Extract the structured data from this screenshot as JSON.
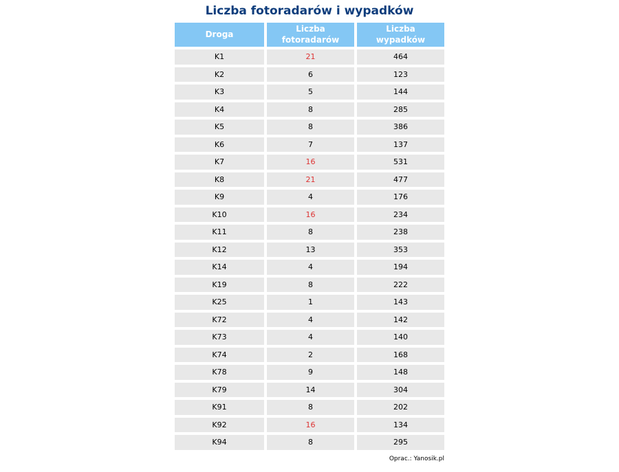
{
  "title": "Liczba fotoradarów i wypadków",
  "footer": "Oprac.: Yanosik.pl",
  "colors": {
    "title_text": "#0e3d7c",
    "header_bg": "#84c7f4",
    "header_text": "#ffffff",
    "row_bg": "#e8e8e8",
    "cell_text": "#000000",
    "highlight_red": "#dd3333",
    "page_bg": "#ffffff"
  },
  "chart_data": {
    "type": "table",
    "title": "Liczba fotoradarów i wypadków",
    "columns": [
      "Droga",
      "Liczba\nfotoradarów",
      "Liczba\nwypadków"
    ],
    "column_keys": [
      "road",
      "cameras",
      "accidents"
    ],
    "highlight_note": "camera counts shown in red for K1, K7, K8, K10, K92",
    "rows": [
      {
        "road": "K1",
        "cameras": "21",
        "accidents": "464",
        "highlight": true
      },
      {
        "road": "K2",
        "cameras": "6",
        "accidents": "123",
        "highlight": false
      },
      {
        "road": "K3",
        "cameras": "5",
        "accidents": "144",
        "highlight": false
      },
      {
        "road": "K4",
        "cameras": "8",
        "accidents": "285",
        "highlight": false
      },
      {
        "road": "K5",
        "cameras": "8",
        "accidents": "386",
        "highlight": false
      },
      {
        "road": "K6",
        "cameras": "7",
        "accidents": "137",
        "highlight": false
      },
      {
        "road": "K7",
        "cameras": "16",
        "accidents": "531",
        "highlight": true
      },
      {
        "road": "K8",
        "cameras": "21",
        "accidents": "477",
        "highlight": true
      },
      {
        "road": "K9",
        "cameras": "4",
        "accidents": "176",
        "highlight": false
      },
      {
        "road": "K10",
        "cameras": "16",
        "accidents": "234",
        "highlight": true
      },
      {
        "road": "K11",
        "cameras": "8",
        "accidents": "238",
        "highlight": false
      },
      {
        "road": "K12",
        "cameras": "13",
        "accidents": "353",
        "highlight": false
      },
      {
        "road": "K14",
        "cameras": "4",
        "accidents": "194",
        "highlight": false
      },
      {
        "road": "K19",
        "cameras": "8",
        "accidents": "222",
        "highlight": false
      },
      {
        "road": "K25",
        "cameras": "1",
        "accidents": "143",
        "highlight": false
      },
      {
        "road": "K72",
        "cameras": "4",
        "accidents": "142",
        "highlight": false
      },
      {
        "road": "K73",
        "cameras": "4",
        "accidents": "140",
        "highlight": false
      },
      {
        "road": "K74",
        "cameras": "2",
        "accidents": "168",
        "highlight": false
      },
      {
        "road": "K78",
        "cameras": "9",
        "accidents": "148",
        "highlight": false
      },
      {
        "road": "K79",
        "cameras": "14",
        "accidents": "304",
        "highlight": false
      },
      {
        "road": "K91",
        "cameras": "8",
        "accidents": "202",
        "highlight": false
      },
      {
        "road": "K92",
        "cameras": "16",
        "accidents": "134",
        "highlight": true
      },
      {
        "road": "K94",
        "cameras": "8",
        "accidents": "295",
        "highlight": false
      }
    ]
  }
}
